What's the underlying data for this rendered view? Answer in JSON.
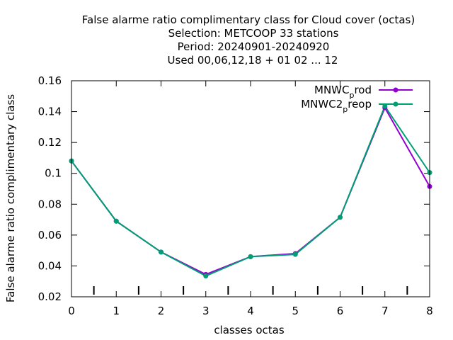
{
  "chart_data": {
    "type": "line",
    "title_lines": [
      "False alarme ratio complimentary class  for Cloud cover (octas)",
      "Selection: METCOOP     33 stations",
      "Period: 20240901-20240920",
      "Used  00,06,12,18 + 01 02 ... 12"
    ],
    "xlabel": "classes octas",
    "ylabel": "False alarme ratio complimentary class",
    "x": [
      0,
      1,
      2,
      3,
      4,
      5,
      6,
      7,
      8
    ],
    "xlim": [
      0,
      8
    ],
    "ylim": [
      0.02,
      0.16
    ],
    "x_ticks": [
      0,
      1,
      2,
      3,
      4,
      5,
      6,
      7,
      8
    ],
    "x_tick_labels": [
      "0",
      "1",
      "2",
      "3",
      "4",
      "5",
      "6",
      "7",
      "8"
    ],
    "y_ticks": [
      0.02,
      0.04,
      0.06,
      0.08,
      0.1,
      0.12,
      0.14,
      0.16
    ],
    "y_tick_labels": [
      "0.02",
      "0.04",
      "0.06",
      "0.08",
      "0.1",
      "0.12",
      "0.14",
      "0.16"
    ],
    "minor_marks_x": [
      0.5,
      1.5,
      2.5,
      3.5,
      4.5,
      5.5,
      6.5,
      7.5
    ],
    "grid": false,
    "legend_position": "top-right",
    "series": [
      {
        "name": "MNWC_prod",
        "legend_main": "MNWC",
        "legend_sub": "p",
        "legend_rest": "rod",
        "color": "#9400d3",
        "values": [
          0.108,
          0.069,
          0.049,
          0.0345,
          0.046,
          0.048,
          0.0715,
          0.1425,
          0.0915
        ]
      },
      {
        "name": "MNWC2_preop",
        "legend_main": "MNWC2",
        "legend_sub": "p",
        "legend_rest": "reop",
        "color": "#009e73",
        "values": [
          0.108,
          0.069,
          0.049,
          0.0335,
          0.046,
          0.0475,
          0.0715,
          0.1435,
          0.1005
        ]
      }
    ]
  }
}
